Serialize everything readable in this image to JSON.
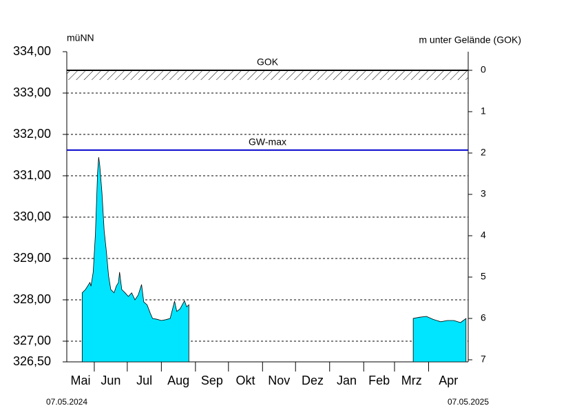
{
  "chart_data": {
    "type": "area",
    "y_axis_label": "müNN",
    "y2_axis_label": "m unter Gelände (GOK)",
    "xlim": [
      "07.05.2024",
      "07.05.2025"
    ],
    "xticks": [
      {
        "value": "01.05.2024",
        "label": "Mai"
      },
      {
        "value": "01.06.2024",
        "label": "Jun"
      },
      {
        "value": "01.07.2024",
        "label": "Jul"
      },
      {
        "value": "01.08.2024",
        "label": "Aug"
      },
      {
        "value": "01.09.2024",
        "label": "Sep"
      },
      {
        "value": "01.10.2024",
        "label": "Okt"
      },
      {
        "value": "01.11.2024",
        "label": "Nov"
      },
      {
        "value": "01.12.2024",
        "label": "Dez"
      },
      {
        "value": "01.01.2025",
        "label": "Jan"
      },
      {
        "value": "01.02.2025",
        "label": "Feb"
      },
      {
        "value": "01.03.2025",
        "label": "Mrz"
      },
      {
        "value": "01.04.2025",
        "label": "Apr"
      }
    ],
    "ylim": [
      326.5,
      334
    ],
    "yticks": [
      {
        "value": 326.5,
        "label": "326,50"
      },
      {
        "value": 327,
        "label": "327,00"
      },
      {
        "value": 328,
        "label": "328,00"
      },
      {
        "value": 329,
        "label": "329,00"
      },
      {
        "value": 330,
        "label": "330,00"
      },
      {
        "value": 331,
        "label": "331,00"
      },
      {
        "value": 332,
        "label": "332,00"
      },
      {
        "value": 333,
        "label": "333,00"
      },
      {
        "value": 334,
        "label": "334,00"
      }
    ],
    "y2lim": [
      7.05,
      -0.45
    ],
    "y2ticks": [
      0,
      1,
      2,
      3,
      4,
      5,
      6,
      7
    ],
    "grid": true,
    "reference_lines": [
      {
        "name": "GOK",
        "value": 333.55,
        "color": "#000000",
        "hatch": true
      },
      {
        "name": "GW-max",
        "value": 331.62,
        "color": "#0000cc"
      }
    ],
    "x": [
      "21.05.2024",
      "24.05.2024",
      "28.05.2024",
      "29.05.2024",
      "31.05.2024",
      "02.06.2024",
      "04.06.2024",
      "05.06.2024",
      "06.06.2024",
      "08.06.2024",
      "10.06.2024",
      "12.06.2024",
      "14.06.2024",
      "16.06.2024",
      "19.06.2024",
      "21.06.2024",
      "23.06.2024",
      "24.06.2024",
      "26.06.2024",
      "29.06.2024",
      "02.07.2024",
      "05.07.2024",
      "08.07.2024",
      "11.07.2024",
      "14.07.2024",
      "16.07.2024",
      "19.07.2024",
      "22.07.2024",
      "24.07.2024",
      "28.07.2024",
      "01.08.2024",
      "05.08.2024",
      "09.08.2024",
      "13.08.2024",
      "15.08.2024",
      "18.08.2024",
      "22.08.2024",
      "24.08.2024",
      "26.08.2024",
      "01.12.2024",
      "18.03.2025",
      "24.03.2025",
      "30.03.2025",
      "05.04.2025",
      "12.04.2025",
      "18.04.2025",
      "24.04.2025",
      "30.04.2025",
      "05.05.2025"
    ],
    "series": [
      {
        "color": "#00e5ff",
        "values": [
          328.17,
          328.25,
          328.42,
          328.33,
          328.67,
          329.58,
          331.08,
          331.45,
          331.25,
          330.58,
          329.67,
          329.17,
          328.58,
          328.25,
          328.17,
          328.33,
          328.42,
          328.67,
          328.25,
          328.17,
          328.08,
          328.17,
          328.0,
          328.12,
          328.37,
          327.95,
          327.88,
          327.67,
          327.55,
          327.53,
          327.5,
          327.52,
          327.55,
          327.97,
          327.72,
          327.78,
          327.98,
          327.83,
          327.88,
          null,
          327.55,
          327.58,
          327.6,
          327.53,
          327.47,
          327.5,
          327.5,
          327.45,
          327.55
        ]
      }
    ]
  }
}
